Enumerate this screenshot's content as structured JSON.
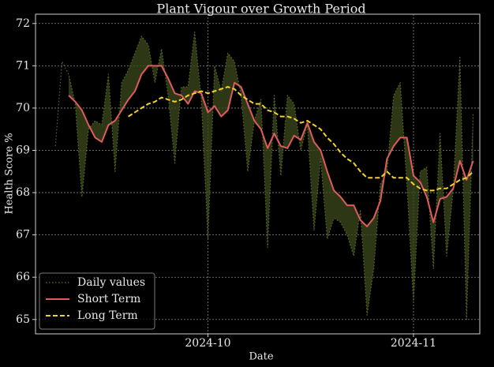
{
  "chart_data": {
    "type": "line",
    "title": "Plant Vigour over Growth Period",
    "xlabel": "Date",
    "ylabel": "Health Score %",
    "x": [
      "2024-09-08",
      "2024-09-09",
      "2024-09-10",
      "2024-09-11",
      "2024-09-12",
      "2024-09-13",
      "2024-09-14",
      "2024-09-15",
      "2024-09-16",
      "2024-09-17",
      "2024-09-18",
      "2024-09-19",
      "2024-09-20",
      "2024-09-21",
      "2024-09-22",
      "2024-09-23",
      "2024-09-24",
      "2024-09-25",
      "2024-09-26",
      "2024-09-27",
      "2024-09-28",
      "2024-09-29",
      "2024-09-30",
      "2024-10-01",
      "2024-10-02",
      "2024-10-03",
      "2024-10-04",
      "2024-10-05",
      "2024-10-06",
      "2024-10-07",
      "2024-10-08",
      "2024-10-09",
      "2024-10-10",
      "2024-10-11",
      "2024-10-12",
      "2024-10-13",
      "2024-10-14",
      "2024-10-15",
      "2024-10-16",
      "2024-10-17",
      "2024-10-18",
      "2024-10-19",
      "2024-10-20",
      "2024-10-21",
      "2024-10-22",
      "2024-10-23",
      "2024-10-24",
      "2024-10-25",
      "2024-10-26",
      "2024-10-27",
      "2024-10-28",
      "2024-10-29",
      "2024-10-30",
      "2024-10-31",
      "2024-11-01",
      "2024-11-02",
      "2024-11-03",
      "2024-11-04",
      "2024-11-05",
      "2024-11-06",
      "2024-11-07",
      "2024-11-08",
      "2024-11-09",
      "2024-11-10"
    ],
    "series": [
      {
        "name": "Daily values",
        "color": "#5a6e2a",
        "band_color": "#3c4a1c",
        "values": [
          69.1,
          71.1,
          70.8,
          70.1,
          67.9,
          69.5,
          69.7,
          69.6,
          70.8,
          68.5,
          70.6,
          70.9,
          71.3,
          71.7,
          71.5,
          70.6,
          71.4,
          70.3,
          68.7,
          70.5,
          70.5,
          71.8,
          70.2,
          66.9,
          71.0,
          70.4,
          71.3,
          71.1,
          70.3,
          68.5,
          69.7,
          70.2,
          66.7,
          70.3,
          68.4,
          70.3,
          70.1,
          69.0,
          69.6,
          67.1,
          68.8,
          66.9,
          67.4,
          67.3,
          67.0,
          66.5,
          67.6,
          65.1,
          66.2,
          68.2,
          68.5,
          70.3,
          70.6,
          68.2,
          65.4,
          68.5,
          68.6,
          66.2,
          69.4,
          66.5,
          68.1,
          71.2,
          65.0,
          69.9
        ]
      },
      {
        "name": "Short Term",
        "color": "#e05c5c",
        "values": [
          null,
          null,
          70.3,
          70.15,
          69.95,
          69.6,
          69.3,
          69.2,
          69.6,
          69.7,
          69.95,
          70.2,
          70.4,
          70.8,
          71.0,
          71.0,
          71.0,
          70.7,
          70.35,
          70.3,
          70.1,
          70.4,
          70.35,
          69.9,
          70.05,
          69.8,
          69.95,
          70.6,
          70.5,
          70.1,
          69.7,
          69.5,
          69.05,
          69.4,
          69.1,
          69.05,
          69.35,
          69.25,
          69.65,
          69.2,
          69.0,
          68.5,
          68.05,
          67.9,
          67.7,
          67.7,
          67.35,
          67.2,
          67.4,
          67.8,
          68.8,
          69.1,
          69.3,
          69.3,
          68.4,
          68.25,
          67.9,
          67.3,
          67.85,
          67.9,
          68.1,
          68.75,
          68.3,
          68.75
        ]
      },
      {
        "name": "Long Term",
        "color": "#f2d030",
        "values": [
          null,
          null,
          null,
          null,
          null,
          null,
          null,
          null,
          null,
          null,
          null,
          69.8,
          69.9,
          70.0,
          70.1,
          70.15,
          70.25,
          70.2,
          70.15,
          70.2,
          70.3,
          70.35,
          70.4,
          70.35,
          70.4,
          70.45,
          70.5,
          70.45,
          70.3,
          70.2,
          70.1,
          70.1,
          69.95,
          69.9,
          69.8,
          69.8,
          69.75,
          69.65,
          69.7,
          69.6,
          69.5,
          69.3,
          69.15,
          68.95,
          68.8,
          68.7,
          68.5,
          68.35,
          68.35,
          68.35,
          68.5,
          68.35,
          68.35,
          68.35,
          68.2,
          68.1,
          68.05,
          68.05,
          68.1,
          68.1,
          68.2,
          68.3,
          68.35,
          68.5
        ]
      }
    ],
    "xlim": [
      "2024-09-05",
      "2024-11-11"
    ],
    "xticks": [
      {
        "value": "2024-10-01",
        "label": "2024-10"
      },
      {
        "value": "2024-11-01",
        "label": "2024-11"
      }
    ],
    "ylim": [
      64.66,
      72.22
    ],
    "yticks": [
      65,
      66,
      67,
      68,
      69,
      70,
      71,
      72
    ],
    "grid": true,
    "legend": "lower left"
  }
}
